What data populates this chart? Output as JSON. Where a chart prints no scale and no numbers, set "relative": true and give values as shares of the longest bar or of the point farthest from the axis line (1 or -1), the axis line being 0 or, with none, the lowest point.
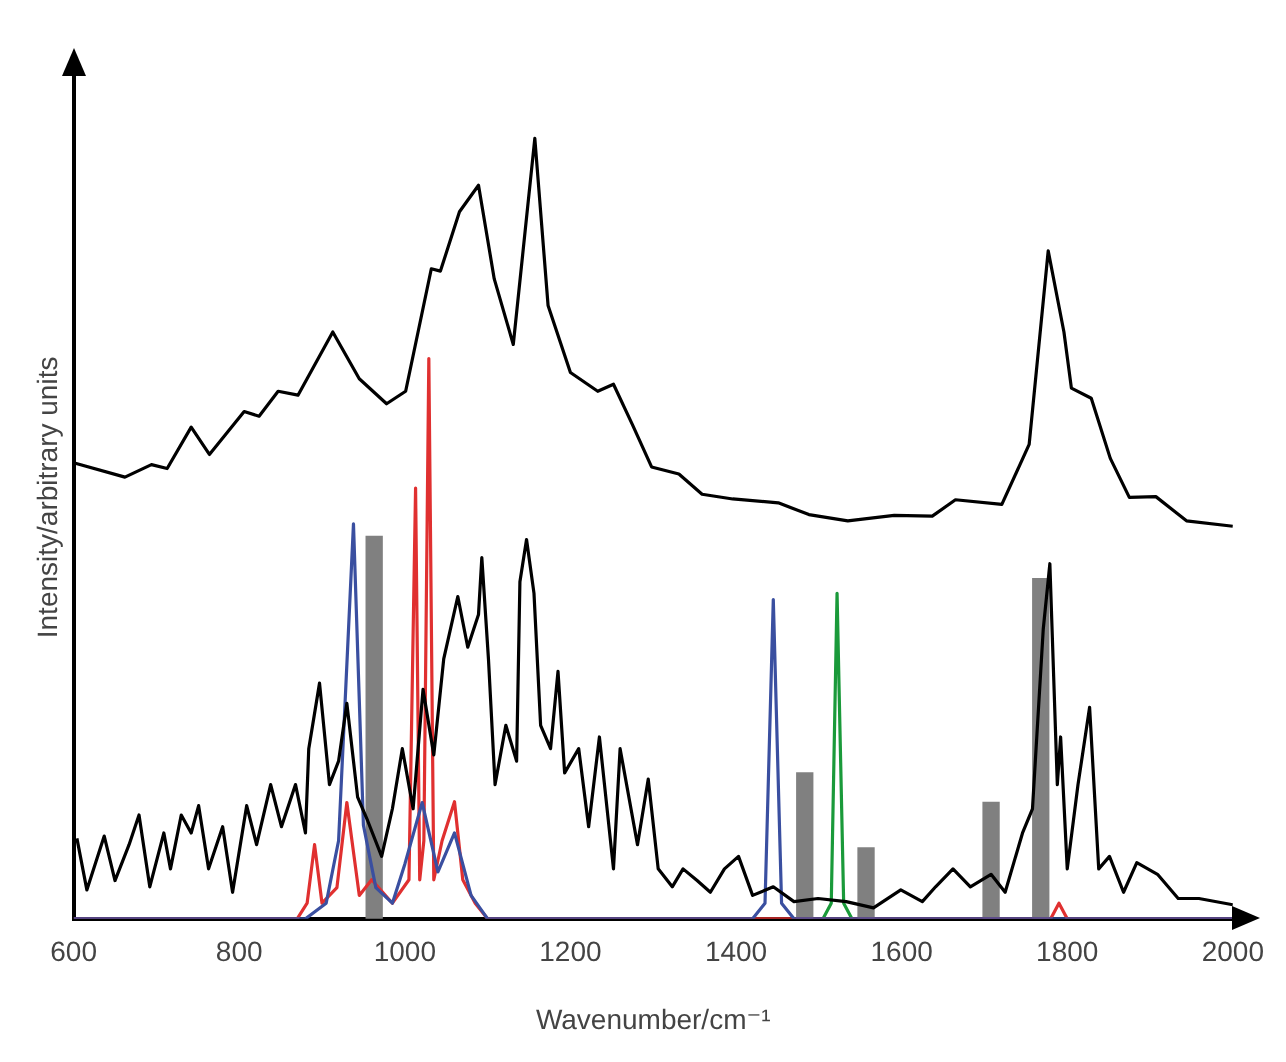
{
  "chart_data": {
    "type": "line",
    "xlabel": "Wavenumber/cm⁻¹",
    "ylabel": "Intensity/arbitrary units",
    "relative": true,
    "xlim": [
      600,
      2000
    ],
    "xticks": [
      600,
      800,
      1000,
      1200,
      1400,
      1600,
      1800,
      2000
    ],
    "grid": false,
    "legend": false,
    "marker": "none",
    "series": [
      {
        "color": "#000000",
        "x": [
          601,
          662,
          694,
          713,
          742,
          764,
          806,
          824,
          847,
          871,
          913,
          945,
          978,
          1001,
          1032,
          1043,
          1066,
          1089,
          1108,
          1131,
          1157,
          1173,
          1200,
          1233,
          1252,
          1275,
          1298,
          1331,
          1359,
          1396,
          1451,
          1488,
          1535,
          1591,
          1637,
          1665,
          1721,
          1754,
          1777,
          1796,
          1805,
          1829,
          1852,
          1875,
          1907,
          1944,
          2000
        ],
        "values": [
          0.584,
          0.566,
          0.582,
          0.577,
          0.63,
          0.595,
          0.65,
          0.644,
          0.676,
          0.671,
          0.752,
          0.692,
          0.66,
          0.676,
          0.833,
          0.83,
          0.906,
          0.94,
          0.82,
          0.736,
          1.0,
          0.786,
          0.7,
          0.676,
          0.685,
          0.633,
          0.579,
          0.57,
          0.544,
          0.538,
          0.533,
          0.518,
          0.51,
          0.517,
          0.516,
          0.537,
          0.531,
          0.608,
          0.856,
          0.752,
          0.68,
          0.667,
          0.59,
          0.54,
          0.541,
          0.51,
          0.503
        ]
      },
      {
        "color": "#000000",
        "x": [
          604,
          616,
          637,
          650,
          667,
          679,
          692,
          709,
          717,
          730,
          742,
          751,
          763,
          780,
          792,
          809,
          821,
          838,
          851,
          868,
          880,
          884,
          897,
          909,
          920,
          930,
          943,
          955,
          972,
          985,
          997,
          1010,
          1022,
          1035,
          1047,
          1064,
          1076,
          1089,
          1093,
          1101,
          1109,
          1122,
          1135,
          1139,
          1147,
          1156,
          1164,
          1176,
          1185,
          1193,
          1210,
          1222,
          1235,
          1252,
          1260,
          1281,
          1294,
          1306,
          1323,
          1336,
          1353,
          1369,
          1386,
          1403,
          1420,
          1445,
          1470,
          1499,
          1533,
          1566,
          1599,
          1625,
          1641,
          1662,
          1683,
          1708,
          1725,
          1746,
          1758,
          1771,
          1779,
          1788,
          1792,
          1800,
          1813,
          1827,
          1838,
          1851,
          1868,
          1884,
          1909,
          1934,
          1959,
          2000
        ],
        "values": [
          0.103,
          0.037,
          0.106,
          0.049,
          0.095,
          0.133,
          0.041,
          0.11,
          0.064,
          0.133,
          0.11,
          0.145,
          0.064,
          0.118,
          0.034,
          0.145,
          0.095,
          0.172,
          0.118,
          0.172,
          0.11,
          0.218,
          0.302,
          0.172,
          0.202,
          0.276,
          0.156,
          0.126,
          0.08,
          0.141,
          0.218,
          0.141,
          0.294,
          0.21,
          0.333,
          0.413,
          0.348,
          0.39,
          0.463,
          0.333,
          0.172,
          0.248,
          0.202,
          0.432,
          0.486,
          0.417,
          0.248,
          0.218,
          0.317,
          0.187,
          0.218,
          0.118,
          0.233,
          0.064,
          0.218,
          0.095,
          0.179,
          0.064,
          0.041,
          0.064,
          0.049,
          0.034,
          0.064,
          0.08,
          0.03,
          0.041,
          0.022,
          0.026,
          0.022,
          0.014,
          0.037,
          0.022,
          0.041,
          0.064,
          0.041,
          0.057,
          0.034,
          0.11,
          0.141,
          0.371,
          0.455,
          0.172,
          0.233,
          0.064,
          0.172,
          0.271,
          0.064,
          0.08,
          0.034,
          0.072,
          0.057,
          0.026,
          0.026,
          0.018
        ]
      },
      {
        "color": "#3a4fa0",
        "x": [
          600,
          880,
          905,
          920,
          938,
          950,
          965,
          985,
          1000,
          1021,
          1040,
          1060,
          1080,
          1100,
          1420,
          1435,
          1445,
          1455,
          1470,
          2000
        ],
        "values": [
          0,
          0,
          0.02,
          0.1,
          0.506,
          0.12,
          0.04,
          0.02,
          0.07,
          0.149,
          0.06,
          0.11,
          0.03,
          0,
          0,
          0.02,
          0.409,
          0.02,
          0,
          0
        ]
      },
      {
        "color": "#e03030",
        "x": [
          600,
          870,
          882,
          891,
          900,
          918,
          930,
          945,
          960,
          985,
          1005,
          1013,
          1018,
          1023,
          1029,
          1035,
          1045,
          1060,
          1070,
          1085,
          1100,
          1780,
          1790,
          1800,
          2000
        ],
        "values": [
          0,
          0,
          0.02,
          0.095,
          0.02,
          0.04,
          0.149,
          0.03,
          0.05,
          0.02,
          0.05,
          0.552,
          0.05,
          0.1,
          0.718,
          0.05,
          0.1,
          0.15,
          0.05,
          0.02,
          0,
          0,
          0.02,
          0,
          0
        ]
      },
      {
        "color": "#1a9a3a",
        "x": [
          1505,
          1515,
          1522,
          1530,
          1540
        ],
        "values": [
          0,
          0.02,
          0.417,
          0.02,
          0
        ]
      },
      {
        "type": "bar",
        "color": "#808080",
        "x": [
          963,
          1483,
          1557,
          1708,
          1768
        ],
        "values": [
          0.49,
          0.187,
          0.091,
          0.149,
          0.436
        ]
      }
    ]
  }
}
